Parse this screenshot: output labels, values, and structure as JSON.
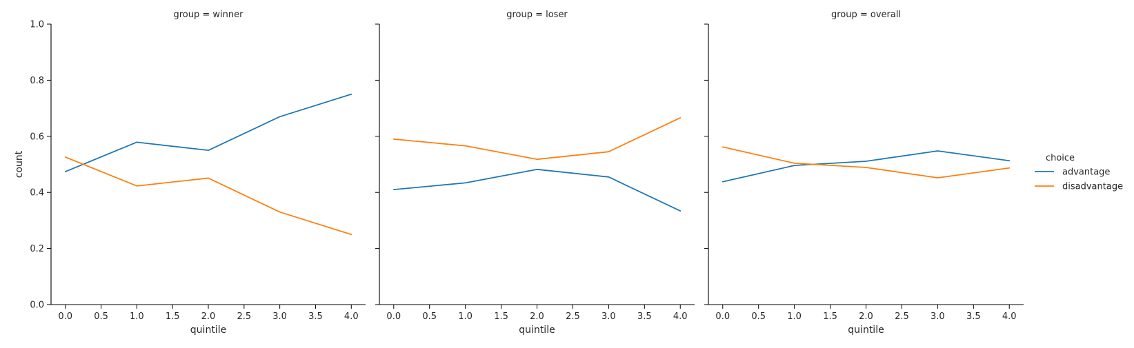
{
  "chart_data": {
    "type": "line",
    "facet_variable": "group",
    "x": [
      0,
      1,
      2,
      3,
      4
    ],
    "xlabel": "quintile",
    "ylabel": "count",
    "xlim": [
      -0.2,
      4.2
    ],
    "ylim": [
      0,
      1
    ],
    "xticks": [
      "0.0",
      "0.5",
      "1.0",
      "1.5",
      "2.0",
      "2.5",
      "3.0",
      "3.5",
      "4.0"
    ],
    "yticks": [
      "0.0",
      "0.2",
      "0.4",
      "0.6",
      "0.8",
      "1.0"
    ],
    "grid": false,
    "legend": {
      "title": "choice",
      "placement": "right",
      "entries": [
        {
          "name": "advantage",
          "color": "#1f77b4"
        },
        {
          "name": "disadvantage",
          "color": "#ff7f0e"
        }
      ]
    },
    "facets": [
      {
        "title": "group = winner",
        "series": [
          {
            "name": "advantage",
            "color": "#1f77b4",
            "values": [
              0.474,
              0.579,
              0.55,
              0.67,
              0.75
            ]
          },
          {
            "name": "disadvantage",
            "color": "#ff7f0e",
            "values": [
              0.526,
              0.423,
              0.451,
              0.33,
              0.25
            ]
          }
        ]
      },
      {
        "title": "group = loser",
        "series": [
          {
            "name": "advantage",
            "color": "#1f77b4",
            "values": [
              0.41,
              0.434,
              0.482,
              0.455,
              0.334
            ]
          },
          {
            "name": "disadvantage",
            "color": "#ff7f0e",
            "values": [
              0.59,
              0.566,
              0.518,
              0.545,
              0.666
            ]
          }
        ]
      },
      {
        "title": "group = overall",
        "series": [
          {
            "name": "advantage",
            "color": "#1f77b4",
            "values": [
              0.438,
              0.496,
              0.511,
              0.548,
              0.513
            ]
          },
          {
            "name": "disadvantage",
            "color": "#ff7f0e",
            "values": [
              0.562,
              0.504,
              0.489,
              0.452,
              0.487
            ]
          }
        ]
      }
    ]
  }
}
